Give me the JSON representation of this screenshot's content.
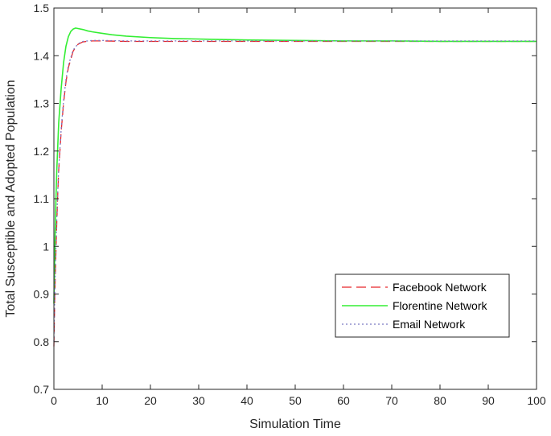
{
  "chart_data": {
    "type": "line",
    "title": "",
    "xlabel": "Simulation Time",
    "ylabel": "Total Susceptible and Adopted Population",
    "xlim": [
      0,
      100
    ],
    "ylim": [
      0.7,
      1.5
    ],
    "xticks": [
      0,
      10,
      20,
      30,
      40,
      50,
      60,
      70,
      80,
      90,
      100
    ],
    "xtick_labels": [
      "0",
      "10",
      "20",
      "30",
      "40",
      "50",
      "60",
      "70",
      "80",
      "90",
      "100"
    ],
    "yticks": [
      0.7,
      0.8,
      0.9,
      1.0,
      1.1,
      1.2,
      1.3,
      1.4,
      1.5
    ],
    "ytick_labels": [
      "0.7",
      "0.8",
      "0.9",
      "1",
      "1.1",
      "1.2",
      "1.3",
      "1.4",
      "1.5"
    ],
    "grid": false,
    "legend_position": "bottom-right",
    "series": [
      {
        "name": "Facebook Network",
        "color": "#e8262b",
        "style": "dashed",
        "x": [
          0,
          0.2,
          0.4,
          0.6,
          0.8,
          1,
          1.5,
          2,
          2.5,
          3,
          4,
          5,
          6,
          8,
          10,
          15,
          20,
          30,
          40,
          50,
          60,
          70,
          80,
          90,
          100
        ],
        "y": [
          0.79,
          0.9,
          0.98,
          1.05,
          1.11,
          1.16,
          1.24,
          1.3,
          1.345,
          1.375,
          1.41,
          1.424,
          1.429,
          1.431,
          1.431,
          1.43,
          1.43,
          1.43,
          1.43,
          1.43,
          1.43,
          1.43,
          1.43,
          1.43,
          1.43
        ]
      },
      {
        "name": "Florentine Network",
        "color": "#33ee33",
        "style": "solid",
        "x": [
          0,
          0.2,
          0.4,
          0.6,
          0.8,
          1,
          1.5,
          2,
          2.5,
          3,
          3.5,
          4,
          4.5,
          5,
          6,
          7,
          8,
          10,
          12,
          15,
          20,
          25,
          30,
          40,
          50,
          60,
          70,
          80,
          90,
          100
        ],
        "y": [
          0.88,
          1.0,
          1.09,
          1.16,
          1.21,
          1.26,
          1.33,
          1.385,
          1.42,
          1.44,
          1.451,
          1.456,
          1.458,
          1.457,
          1.455,
          1.452,
          1.45,
          1.447,
          1.444,
          1.441,
          1.438,
          1.436,
          1.435,
          1.433,
          1.432,
          1.431,
          1.431,
          1.43,
          1.43,
          1.43
        ]
      },
      {
        "name": "Email Network",
        "color": "#7b79c2",
        "style": "dotted",
        "x": [
          0,
          0.2,
          0.4,
          0.6,
          0.8,
          1,
          1.5,
          2,
          2.5,
          3,
          4,
          5,
          6,
          8,
          10,
          15,
          20,
          30,
          40,
          50,
          60,
          70,
          80,
          90,
          100
        ],
        "y": [
          0.8,
          0.91,
          0.99,
          1.06,
          1.115,
          1.165,
          1.245,
          1.305,
          1.35,
          1.38,
          1.412,
          1.425,
          1.43,
          1.432,
          1.432,
          1.431,
          1.431,
          1.431,
          1.431,
          1.431,
          1.431,
          1.431,
          1.431,
          1.431,
          1.431
        ]
      }
    ]
  }
}
